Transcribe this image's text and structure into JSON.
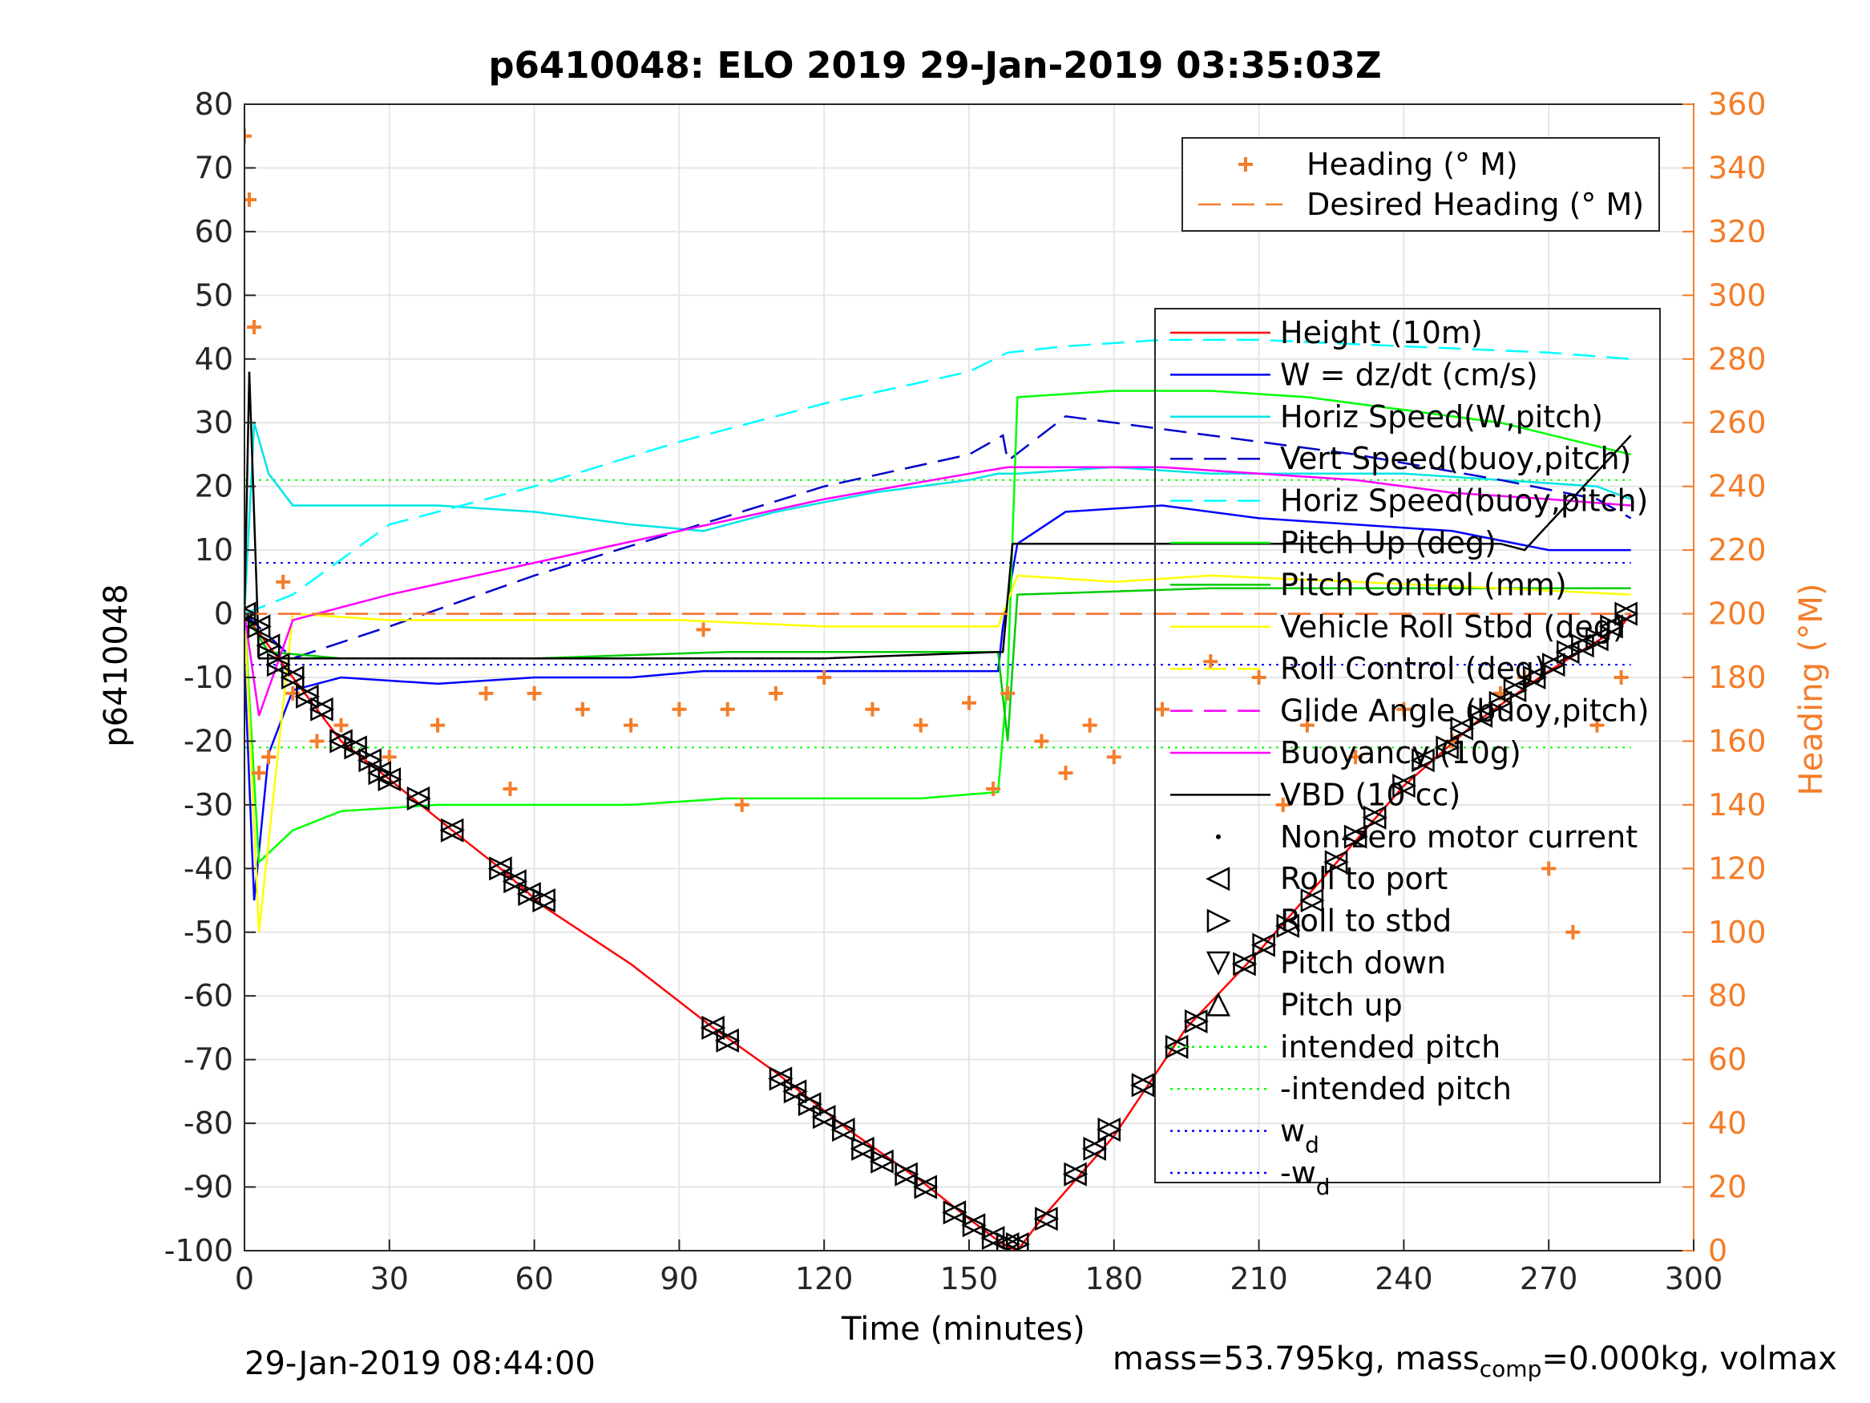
{
  "chart_data": {
    "type": "line",
    "title": "p6410048: ELO 2019 29-Jan-2019 03:35:03Z",
    "xlabel": "Time (minutes)",
    "ylabel": "p6410048",
    "ylabel_right": "Heading (°M)",
    "xlim": [
      0,
      300
    ],
    "ylim": [
      -100,
      80
    ],
    "ylim_right": [
      0,
      360
    ],
    "x_ticks": [
      0,
      30,
      60,
      90,
      120,
      150,
      180,
      210,
      240,
      270,
      300
    ],
    "y_ticks": [
      -100,
      -90,
      -80,
      -70,
      -60,
      -50,
      -40,
      -30,
      -20,
      -10,
      0,
      10,
      20,
      30,
      40,
      50,
      60,
      70,
      80
    ],
    "y_right_ticks": [
      0,
      20,
      40,
      60,
      80,
      100,
      120,
      140,
      160,
      180,
      200,
      220,
      240,
      260,
      280,
      300,
      320,
      340,
      360
    ],
    "grid": true,
    "footer_left": "29-Jan-2019 08:44:00",
    "footer_right": {
      "part1": "mass=53.795kg, mass",
      "sub": "comp",
      "part2": "=0.000kg, volmax"
    },
    "legend_heading": {
      "placement": "top-right",
      "entries": [
        "Heading (° M)",
        "Desired Heading (° M)"
      ]
    },
    "legend_main": {
      "placement": "right",
      "entries": [
        {
          "label": "Height (10m)",
          "color": "#ff0000",
          "style": "solid"
        },
        {
          "label": "W = dz/dt (cm/s)",
          "color": "#0000ff",
          "style": "solid"
        },
        {
          "label": "Horiz Speed(W,pitch)",
          "color": "#00e5e5",
          "style": "solid"
        },
        {
          "label": "Vert Speed(buoy,pitch)",
          "color": "#0000cc",
          "style": "dashed"
        },
        {
          "label": "Horiz Speed(buoy,pitch)",
          "color": "#00ffff",
          "style": "dashed"
        },
        {
          "label": "Pitch Up (deg)",
          "color": "#00ff00",
          "style": "solid"
        },
        {
          "label": "Pitch Control (mm)",
          "color": "#00cc00",
          "style": "solid"
        },
        {
          "label": "Vehicle Roll Stbd (deg)",
          "color": "#ffff00",
          "style": "solid"
        },
        {
          "label": "Roll Control (deg)",
          "color": "#ffff00",
          "style": "dashed"
        },
        {
          "label": "Glide Angle (buoy,pitch)",
          "color": "#ff00ff",
          "style": "dashed"
        },
        {
          "label": "Buoyancy (10g)",
          "color": "#ff00ff",
          "style": "solid"
        },
        {
          "label": "VBD (10 cc)",
          "color": "#000000",
          "style": "solid"
        },
        {
          "label": "Non-zero motor current",
          "color": "#000000",
          "style": "dot"
        },
        {
          "label": "Roll to port",
          "color": "#000000",
          "style": "tri-left"
        },
        {
          "label": "Roll to stbd",
          "color": "#000000",
          "style": "tri-right"
        },
        {
          "label": "Pitch down",
          "color": "#000000",
          "style": "tri-down"
        },
        {
          "label": "Pitch up",
          "color": "#000000",
          "style": "tri-up"
        },
        {
          "label": "intended pitch",
          "color": "#00ff00",
          "style": "dotted"
        },
        {
          "label": "-intended pitch",
          "color": "#00ff00",
          "style": "dotted"
        },
        {
          "label": "w",
          "sub": "d",
          "color": "#0000ff",
          "style": "dotted"
        },
        {
          "label": "-w",
          "sub": "d",
          "color": "#0000ff",
          "style": "dotted"
        }
      ]
    },
    "series": [
      {
        "name": "Height (10m)",
        "color": "#ff0000",
        "x": [
          0,
          5,
          10,
          20,
          30,
          43,
          53,
          62,
          80,
          97,
          110,
          125,
          140,
          150,
          157,
          160,
          165,
          180,
          195,
          210,
          225,
          240,
          255,
          270,
          285,
          287
        ],
        "y": [
          0,
          -5,
          -10,
          -20,
          -26,
          -34,
          -40,
          -46,
          -55,
          -65,
          -72,
          -81,
          -89,
          -95,
          -99,
          -100,
          -95,
          -82,
          -65,
          -53,
          -40,
          -27,
          -17,
          -9,
          -2,
          0
        ]
      },
      {
        "name": "W = dz/dt (cm/s)",
        "color": "#0000ff",
        "x": [
          0,
          2,
          5,
          10,
          20,
          40,
          60,
          80,
          95,
          110,
          130,
          150,
          156,
          157,
          160,
          170,
          190,
          210,
          230,
          250,
          270,
          287
        ],
        "y": [
          -8,
          -45,
          -22,
          -12,
          -10,
          -11,
          -10,
          -10,
          -9,
          -9,
          -9,
          -9,
          -9,
          -2,
          11,
          16,
          17,
          15,
          14,
          13,
          10,
          10
        ]
      },
      {
        "name": "Horiz Speed(W,pitch)",
        "color": "#00e5e5",
        "x": [
          0,
          2,
          5,
          10,
          20,
          40,
          60,
          80,
          95,
          110,
          130,
          150,
          156,
          160,
          180,
          200,
          220,
          240,
          260,
          280,
          287
        ],
        "y": [
          0,
          30,
          22,
          17,
          17,
          17,
          16,
          14,
          13,
          16,
          19,
          21,
          22,
          22,
          23,
          22,
          22,
          22,
          21,
          20,
          18
        ]
      },
      {
        "name": "Vert Speed(buoy,pitch)",
        "color": "#0000cc",
        "x": [
          0,
          10,
          30,
          60,
          90,
          120,
          150,
          157,
          158,
          170,
          200,
          230,
          260,
          280,
          287
        ],
        "y": [
          0,
          -7,
          -2,
          6,
          13,
          20,
          25,
          28,
          24,
          31,
          28,
          25,
          21,
          18,
          15
        ]
      },
      {
        "name": "Horiz Speed(buoy,pitch)",
        "color": "#00ffff",
        "x": [
          0,
          10,
          30,
          60,
          90,
          120,
          150,
          158,
          170,
          190,
          210,
          240,
          270,
          287
        ],
        "y": [
          0,
          3,
          14,
          20,
          27,
          33,
          38,
          41,
          42,
          43,
          43,
          42,
          41,
          40
        ]
      },
      {
        "name": "Pitch Up (deg)",
        "color": "#00ff00",
        "x": [
          0,
          3,
          10,
          20,
          40,
          60,
          80,
          100,
          120,
          140,
          156,
          158,
          160,
          180,
          200,
          220,
          240,
          260,
          287
        ],
        "y": [
          0,
          -39,
          -34,
          -31,
          -30,
          -30,
          -30,
          -29,
          -29,
          -29,
          -28,
          -10,
          34,
          35,
          35,
          34,
          32,
          30,
          25
        ]
      },
      {
        "name": "Pitch Control (mm)",
        "color": "#00cc00",
        "x": [
          0,
          5,
          20,
          60,
          100,
          156,
          158,
          160,
          200,
          240,
          287
        ],
        "y": [
          0,
          -6,
          -7,
          -7,
          -6,
          -6,
          -20,
          3,
          4,
          4,
          4
        ]
      },
      {
        "name": "Vehicle Roll Stbd (deg)",
        "color": "#ffff00",
        "x": [
          0,
          3,
          10,
          30,
          60,
          90,
          120,
          156,
          160,
          180,
          200,
          230,
          260,
          287
        ],
        "y": [
          0,
          -50,
          0,
          -1,
          -1,
          -1,
          -2,
          -2,
          6,
          5,
          6,
          5,
          4,
          3
        ]
      },
      {
        "name": "Glide Angle (buoy,pitch)",
        "color": "#ff00ff",
        "x": [
          0,
          10,
          60,
          120,
          157,
          160,
          200,
          250,
          287
        ],
        "y": [
          0,
          0,
          0,
          0,
          0,
          0,
          0,
          0,
          0
        ]
      },
      {
        "name": "Buoyancy (10g)",
        "color": "#ff00ff",
        "x": [
          0,
          3,
          10,
          30,
          60,
          90,
          120,
          150,
          158,
          170,
          190,
          210,
          230,
          250,
          270,
          287
        ],
        "y": [
          0,
          -16,
          -1,
          3,
          8,
          13,
          18,
          22,
          23,
          23,
          23,
          22,
          21,
          19,
          18,
          17
        ]
      },
      {
        "name": "VBD (10 cc)",
        "color": "#000000",
        "x": [
          0,
          1,
          3,
          10,
          40,
          80,
          120,
          156,
          157,
          159,
          170,
          200,
          230,
          260,
          265,
          287
        ],
        "y": [
          0,
          38,
          -7,
          -7,
          -7,
          -7,
          -7,
          -6,
          -6,
          11,
          11,
          11,
          11,
          11,
          10,
          28
        ]
      },
      {
        "name": "Heading (° M)",
        "color": "#f47d2a",
        "axis": "right",
        "x": [
          0,
          1,
          2,
          3,
          5,
          8,
          10,
          15,
          20,
          30,
          40,
          50,
          55,
          60,
          70,
          80,
          90,
          95,
          100,
          103,
          110,
          120,
          130,
          140,
          150,
          155,
          158,
          165,
          170,
          175,
          180,
          190,
          200,
          210,
          215,
          220,
          230,
          240,
          250,
          260,
          265,
          270,
          275,
          280,
          285
        ],
        "y": [
          350,
          330,
          290,
          150,
          155,
          210,
          175,
          160,
          165,
          155,
          165,
          175,
          145,
          175,
          170,
          165,
          170,
          195,
          170,
          140,
          175,
          180,
          170,
          165,
          172,
          145,
          175,
          160,
          150,
          165,
          155,
          170,
          185,
          180,
          140,
          165,
          155,
          170,
          160,
          175,
          180,
          120,
          100,
          165,
          180
        ]
      },
      {
        "name": "Desired Heading (° M)",
        "color": "#f47d2a",
        "axis": "right",
        "x": [
          0,
          287
        ],
        "y": [
          200,
          200
        ]
      }
    ],
    "reference_lines": [
      {
        "label": "intended pitch",
        "y": 21,
        "color": "#00ff00"
      },
      {
        "label": "-intended pitch",
        "y": -21,
        "color": "#00ff00"
      },
      {
        "label": "w_d",
        "y": 8,
        "color": "#0000ff"
      },
      {
        "label": "-w_d",
        "y": -8,
        "color": "#0000ff"
      }
    ],
    "markers": {
      "description": "Roll to port / Roll to stbd / Pitch down / Pitch up markers along Height curve",
      "x": [
        0,
        3,
        5,
        7,
        10,
        13,
        16,
        20,
        23,
        26,
        28,
        30,
        36,
        43,
        53,
        56,
        59,
        62,
        97,
        100,
        111,
        114,
        117,
        120,
        124,
        128,
        132,
        137,
        141,
        147,
        151,
        155,
        158,
        160,
        166,
        172,
        176,
        179,
        186,
        193,
        197,
        207,
        211,
        216,
        221,
        226,
        230,
        234,
        240,
        244,
        249,
        252,
        256,
        260,
        263,
        267,
        271,
        274,
        277,
        280,
        283,
        286
      ],
      "y": [
        0,
        -2,
        -5,
        -8,
        -10,
        -13,
        -15,
        -20,
        -21,
        -23,
        -25,
        -26,
        -29,
        -34,
        -40,
        -42,
        -44,
        -45,
        -65,
        -67,
        -73,
        -75,
        -77,
        -79,
        -81,
        -84,
        -86,
        -88,
        -90,
        -94,
        -96,
        -98,
        -99,
        -99,
        -95,
        -88,
        -84,
        -81,
        -74,
        -68,
        -64,
        -55,
        -52,
        -49,
        -45,
        -39,
        -35,
        -32,
        -27,
        -23,
        -21,
        -18,
        -16,
        -14,
        -12,
        -10,
        -8,
        -6,
        -5,
        -4,
        -2,
        0
      ]
    }
  }
}
